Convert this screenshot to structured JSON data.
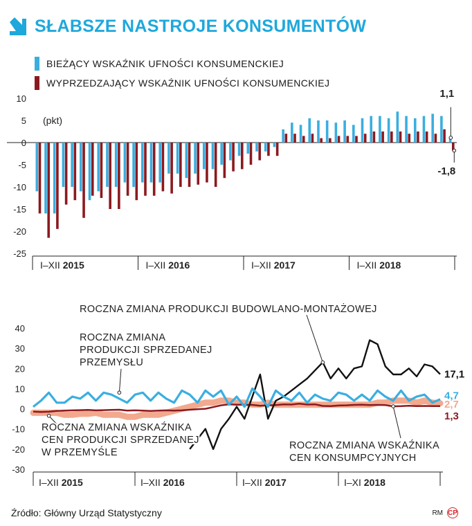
{
  "title": "SŁABSZE NASTROJE KONSUMENTÓW",
  "colors": {
    "title": "#1ea8dc",
    "current": "#3aaee0",
    "leading": "#8b1a1f",
    "black": "#111111",
    "salmon": "#f2a98e",
    "darkred": "#8b1a1f"
  },
  "chart_data": [
    {
      "type": "bar",
      "unit_label": "(pkt)",
      "legend": [
        "BIEŻĄCY WSKAŹNIK UFNOŚCI KONSUMENCKIEJ",
        "WYPRZEDZAJĄCY WSKAŹNIK UFNOŚCI KONSUMENCKIEJ"
      ],
      "ylim": [
        -25,
        10
      ],
      "yticks": [
        10,
        5,
        0,
        -5,
        -10,
        -15,
        -20,
        -25
      ],
      "x_period_labels": [
        {
          "prefix": "I–XII ",
          "year": "2015"
        },
        {
          "prefix": "I–XII ",
          "year": "2016"
        },
        {
          "prefix": "I–XII ",
          "year": "2017"
        },
        {
          "prefix": "I–XII ",
          "year": "2018"
        }
      ],
      "series": [
        {
          "name": "BIEŻĄCY WSKAŹNIK UFNOŚCI KONSUMENCKIEJ",
          "values": [
            -11,
            -16,
            -16,
            -10,
            -10,
            -11,
            -13,
            -11,
            -10,
            -10,
            -9,
            -10,
            -9,
            -9,
            -9,
            -7,
            -7,
            -8,
            -7,
            -6,
            -6,
            -5,
            -4,
            -3,
            -2.5,
            -2,
            -2,
            -1,
            3,
            4.5,
            4,
            5.5,
            5,
            5,
            4.5,
            5,
            4,
            5.5,
            6,
            6,
            5.5,
            7,
            6,
            5.5,
            6,
            6.5,
            6,
            1.1
          ]
        },
        {
          "name": "WYPRZEDZAJĄCY WSKAŹNIK UFNOŚCI KONSUMENCKIEJ",
          "values": [
            -16,
            -21.5,
            -19.5,
            -14,
            -13,
            -17,
            -12,
            -12.5,
            -15,
            -15,
            -12,
            -13,
            -12,
            -12,
            -11,
            -11.5,
            -10,
            -10,
            -9.5,
            -9,
            -10,
            -8,
            -6.5,
            -6,
            -5,
            -4,
            -3,
            -3,
            2,
            2,
            1.5,
            2,
            1,
            1,
            1.5,
            1.5,
            1.5,
            2,
            2.5,
            2.5,
            2.5,
            2.5,
            2,
            2.5,
            2.5,
            2,
            3,
            -1.8
          ]
        }
      ],
      "annotations": {
        "last_current": "1,1",
        "last_leading": "-1,8"
      }
    },
    {
      "type": "line",
      "ylim": [
        -30,
        40
      ],
      "yticks": [
        40,
        30,
        20,
        10,
        0,
        -10,
        -20,
        -30
      ],
      "x_period_labels": [
        {
          "prefix": "I–XII ",
          "year": "2015"
        },
        {
          "prefix": "I–XII ",
          "year": "2016"
        },
        {
          "prefix": "I–XII ",
          "year": "2017"
        },
        {
          "prefix": "I–XI ",
          "year": "2018"
        }
      ],
      "series": [
        {
          "name": "ROCZNA ZMIANA PRODUKCJI BUDOWLANO-MONTAŻOWEJ",
          "values": [
            null,
            null,
            null,
            null,
            null,
            null,
            null,
            null,
            null,
            null,
            null,
            null,
            null,
            null,
            null,
            null,
            null,
            null,
            null,
            null,
            -20,
            -15,
            -10,
            -20,
            -10,
            -5,
            1,
            -5,
            6,
            17,
            -5,
            4,
            6,
            9,
            12,
            15,
            19,
            23,
            15,
            20,
            15,
            20,
            21,
            34,
            32,
            21,
            17,
            17,
            20,
            16,
            22,
            21,
            17.1
          ],
          "label_value": "17,1"
        },
        {
          "name": "ROCZNA ZMIANA PRODUKCJI SPRZEDANEJ PRZEMYSŁU",
          "values": [
            1,
            4,
            8,
            3,
            3,
            6,
            5,
            8,
            4,
            8,
            7,
            5,
            3,
            7,
            8,
            4,
            8,
            5,
            3,
            9,
            7,
            3,
            9,
            6,
            9,
            2,
            6,
            1,
            10,
            6,
            1,
            9,
            6,
            4,
            8,
            3,
            7,
            5,
            4,
            8,
            7,
            4,
            7,
            4,
            9,
            6,
            4,
            9,
            4,
            6,
            7,
            3,
            4.7
          ],
          "label_value": "4,7"
        },
        {
          "name": "ROCZNA ZMIANA WSKAŹNIKA CEN PRODUKCJI SPRZEDANEJ W PRZEMYŚLE",
          "values": [
            -2,
            -2,
            -2,
            -2,
            -3,
            -3,
            -2.5,
            -2.5,
            -2,
            -3,
            -3,
            -3,
            -4,
            -4,
            -3,
            -3,
            -3,
            -2,
            -1,
            0,
            1,
            2,
            3,
            3,
            4,
            4,
            3,
            3,
            2,
            2,
            3,
            2,
            2,
            2,
            2,
            2,
            2,
            2,
            2,
            2,
            2,
            2,
            2,
            2,
            3,
            3,
            4,
            4,
            4,
            3,
            4,
            3,
            2.7
          ],
          "label_value": "2,7"
        },
        {
          "name": "ROCZNA ZMIANA WSKAŹNIKA CEN KONSUMPCYJNYCH",
          "values": [
            -1.4,
            -1.6,
            -1.5,
            -1.1,
            -0.9,
            -0.8,
            -0.7,
            -0.6,
            -0.8,
            -0.7,
            -0.6,
            -0.5,
            -0.9,
            -0.8,
            -0.9,
            -1.1,
            -0.9,
            -0.8,
            -0.9,
            -0.8,
            -0.5,
            -0.2,
            0,
            0.8,
            1.7,
            2.2,
            2,
            2,
            1.9,
            1.5,
            1.7,
            1.8,
            2.2,
            2.1,
            2.5,
            2.1,
            2.2,
            1.4,
            1.3,
            1.6,
            1.7,
            1.9,
            2,
            1.8,
            1.9,
            1.8,
            1.2,
            1.3,
            1.5,
            1.3,
            1.4,
            1.3,
            1.3
          ],
          "label_value": "1,3"
        }
      ],
      "annotation_lines": {
        "construction": [
          "ROCZNA ZMIANA PRODUKCJI BUDOWLANO-MONTAŻOWEJ"
        ],
        "industry": [
          "ROCZNA ZMIANA",
          "PRODUKCJI SPRZEDANEJ",
          "PRZEMYSŁU"
        ],
        "ppi": [
          "ROCZNA ZMIANA WSKAŹNIKA",
          "CEN PRODUKCJI SPRZEDANEJ",
          "W PRZEMYŚLE"
        ],
        "cpi": [
          "ROCZNA ZMIANA WSKAŹNIKA",
          "CEN KONSUMPCYJNYCH"
        ]
      }
    }
  ],
  "source": "Źródło: Główny Urząd Statystyczny",
  "credits": {
    "author": "RM",
    "logo": "cp-logo"
  }
}
